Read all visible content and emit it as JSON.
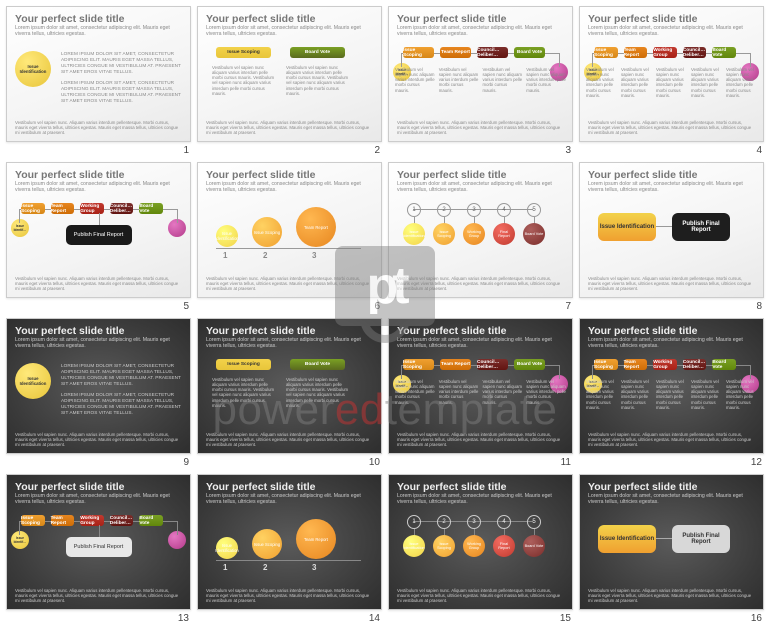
{
  "slide_title": "Your perfect slide title",
  "subtitle_lorem": "Lorem ipsum dolor sit amet, consectetur adipiscing elit. Mauris eget viverra tellus, ultricies egestas.",
  "lorem_block": "LOREM IPSUM DOLOR SIT AMET, CONSECTETUR ADIPISCING ELIT. MAURIS EGET MASSA TELLUS, ULTRICIES CONGUE MI VESTIBULUM AT. PRAESENT SIT AMET EROS VITAE TELLUS.",
  "lorem_para": "Vestibulum vel sapien nunc. Aliquam varius interdum pellentesque. Morbi cursus, mauris eget viverra tellus, ultricies egestas. Mauris eget massa tellus, ultricies congue mi vestibulum at praesent.",
  "lorem_cell": "Vestibulum vel sapien nunc aliquam varius interdum pelle morbi cursus mauris.",
  "watermark_text_pre": "power",
  "watermark_text_mid": "ed",
  "watermark_text_post": "template",
  "labels": {
    "issue_identification": "Issue Identification",
    "issue_scoping": "Issue Scoping",
    "board_vote": "Board Vote",
    "team_report": "Team Report",
    "council_deliberation": "Council Deliberation",
    "working_group": "Working Group",
    "publish_final_report": "Publish Final Report",
    "final_report": "Final Report"
  },
  "colors": {
    "yellow": "#f2d24a",
    "yellow_grad": "#e8c53a",
    "orange": "#f0a030",
    "orange2": "#e7861f",
    "red": "#c13a2f",
    "maroon": "#7b2d2a",
    "green": "#7aa024",
    "olive": "#5a6b1e",
    "magenta": "#b33a8a",
    "pink": "#e477c2",
    "black": "#1e1e1e",
    "grey": "#d8d8d8"
  },
  "slides": [
    {
      "num": 1,
      "theme": "light",
      "layout": "L1"
    },
    {
      "num": 2,
      "theme": "light",
      "layout": "L2"
    },
    {
      "num": 3,
      "theme": "light",
      "layout": "L3"
    },
    {
      "num": 4,
      "theme": "light",
      "layout": "L4"
    },
    {
      "num": 5,
      "theme": "light",
      "layout": "L5"
    },
    {
      "num": 6,
      "theme": "light",
      "layout": "L6"
    },
    {
      "num": 7,
      "theme": "light",
      "layout": "L7"
    },
    {
      "num": 8,
      "theme": "light",
      "layout": "L8"
    },
    {
      "num": 9,
      "theme": "dark",
      "layout": "L1"
    },
    {
      "num": 10,
      "theme": "dark",
      "layout": "L2"
    },
    {
      "num": 11,
      "theme": "dark",
      "layout": "L3"
    },
    {
      "num": 12,
      "theme": "dark",
      "layout": "L4"
    },
    {
      "num": 13,
      "theme": "dark",
      "layout": "L5"
    },
    {
      "num": 14,
      "theme": "dark",
      "layout": "L6"
    },
    {
      "num": 15,
      "theme": "dark",
      "layout": "L7"
    },
    {
      "num": 16,
      "theme": "dark",
      "layout": "L8"
    }
  ],
  "L3_pills": [
    {
      "label": "issue_scoping",
      "color": "orange"
    },
    {
      "label": "team_report",
      "color": "orange2"
    },
    {
      "label": "council_deliberation",
      "color": "maroon"
    },
    {
      "label": "board_vote",
      "color": "green"
    }
  ],
  "L4_pills": [
    {
      "label": "issue_scoping",
      "color": "orange"
    },
    {
      "label": "team_report",
      "color": "orange2"
    },
    {
      "label": "working_group",
      "color": "red"
    },
    {
      "label": "council_deliberation",
      "color": "maroon"
    },
    {
      "label": "board_vote",
      "color": "green"
    }
  ],
  "L6_circles": [
    {
      "size": 22,
      "color": "yellow",
      "label": "issue_identification",
      "n": "1"
    },
    {
      "size": 30,
      "color": "orange",
      "label": "issue_scoping",
      "n": "2"
    },
    {
      "size": 40,
      "color": "orange2",
      "label": "team_report",
      "n": "3"
    }
  ],
  "L7_rings": [
    "1",
    "2",
    "3",
    "4",
    "5"
  ],
  "L7_fills": [
    {
      "color": "yellow",
      "label": "issue_identification"
    },
    {
      "color": "orange",
      "label": "issue_scoping"
    },
    {
      "color": "orange2",
      "label": "working_group"
    },
    {
      "color": "red",
      "label": "final_report"
    },
    {
      "color": "maroon",
      "label": "board_vote"
    }
  ]
}
